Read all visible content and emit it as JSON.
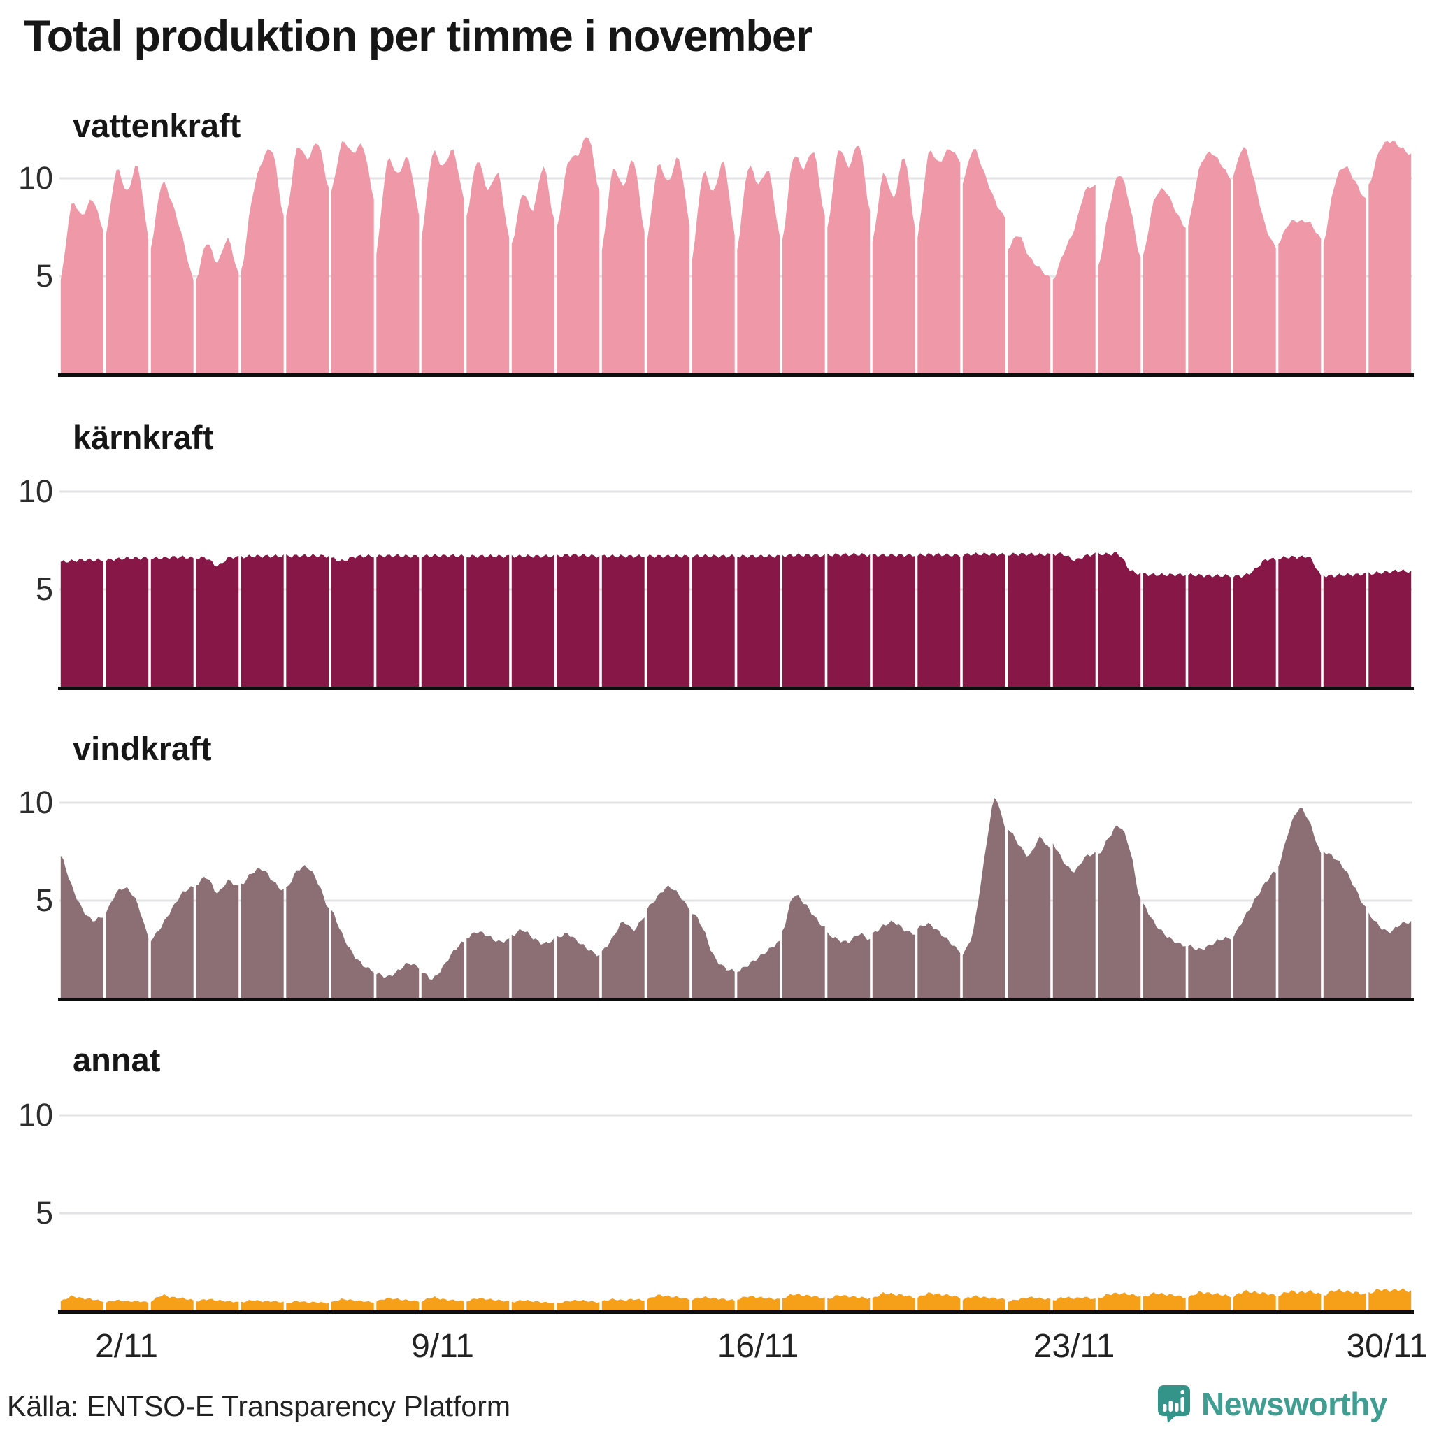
{
  "title": "Total produktion per timme i november",
  "y_axis": {
    "tick_labels": [
      "10",
      "5"
    ]
  },
  "x_axis": {
    "labels": [
      "2/11",
      "9/11",
      "16/11",
      "23/11",
      "30/11"
    ],
    "label_days": [
      2,
      9,
      16,
      23,
      30
    ]
  },
  "footer": {
    "source": "Källa: ENTSO-E Transparency Platform",
    "brand": "Newsworthy"
  },
  "colors": {
    "background": "#ffffff",
    "title_text": "#161616",
    "tick_text": "#2d2d2d",
    "gridline": "#e3e3e5",
    "axis_line": "#0d0d0d",
    "brand_teal": "#3f9e91",
    "hydro_pink": "#ef98a8",
    "nuclear_maroon": "#871747",
    "wind_mauve": "#8c6f75",
    "other_orange": "#f6a01a"
  },
  "chart_data": {
    "type": "area",
    "note": "small multiples; one panel per energy source; hourly production in November, 30 daily segments; 5 keyframes per day (00h,06h,12h,18h,24h), unit GW",
    "yticks": [
      5,
      10
    ],
    "ylim": [
      0,
      13
    ],
    "x_tick_labels": [
      "2/11",
      "9/11",
      "16/11",
      "23/11",
      "30/11"
    ],
    "panels": [
      {
        "label": "vattenkraft",
        "color": "#ef98a8",
        "days": [
          [
            4.8,
            8.6,
            8.1,
            8.9,
            7.4
          ],
          [
            7.1,
            10.4,
            9.3,
            10.6,
            7.0
          ],
          [
            6.5,
            9.7,
            8.7,
            6.9,
            4.8
          ],
          [
            4.8,
            6.7,
            5.7,
            6.9,
            5.1
          ],
          [
            5.2,
            8.9,
            10.9,
            11.3,
            8.0
          ],
          [
            8.0,
            11.5,
            11.0,
            11.8,
            9.5
          ],
          [
            9.3,
            11.8,
            11.3,
            11.6,
            9.0
          ],
          [
            6.2,
            10.8,
            10.2,
            11.0,
            8.2
          ],
          [
            7.0,
            11.2,
            10.6,
            11.4,
            8.9
          ],
          [
            8.1,
            10.9,
            9.4,
            10.2,
            6.9
          ],
          [
            6.6,
            9.2,
            8.4,
            10.6,
            7.8
          ],
          [
            7.4,
            10.7,
            11.2,
            12.1,
            9.3
          ],
          [
            6.3,
            10.4,
            9.6,
            10.9,
            7.3
          ],
          [
            6.8,
            10.6,
            9.8,
            11.0,
            7.7
          ],
          [
            5.9,
            10.2,
            9.3,
            10.8,
            7.1
          ],
          [
            6.4,
            10.5,
            9.7,
            10.3,
            7.0
          ],
          [
            6.8,
            11.0,
            10.5,
            11.3,
            8.0
          ],
          [
            7.4,
            11.4,
            10.6,
            11.7,
            8.3
          ],
          [
            6.7,
            10.2,
            9.0,
            11.1,
            7.5
          ],
          [
            7.0,
            11.2,
            10.8,
            11.5,
            10.9
          ],
          [
            9.8,
            11.5,
            10.3,
            8.9,
            8.0
          ],
          [
            6.4,
            7.1,
            6.0,
            5.4,
            4.9
          ],
          [
            4.8,
            6.2,
            7.4,
            9.3,
            9.6
          ],
          [
            5.4,
            8.3,
            10.2,
            8.6,
            5.9
          ],
          [
            6.0,
            8.8,
            9.4,
            8.4,
            7.5
          ],
          [
            7.6,
            10.4,
            11.3,
            10.8,
            10.0
          ],
          [
            10.2,
            11.6,
            9.8,
            7.6,
            6.5
          ],
          [
            6.7,
            7.7,
            7.8,
            7.7,
            6.9
          ],
          [
            6.7,
            9.6,
            10.6,
            9.8,
            8.9
          ],
          [
            9.6,
            11.4,
            11.9,
            11.6,
            11.2
          ]
        ]
      },
      {
        "label": "kärnkraft",
        "color": "#871747",
        "days": [
          [
            6.4,
            6.45,
            6.5,
            6.5,
            6.5
          ],
          [
            6.5,
            6.55,
            6.6,
            6.6,
            6.6
          ],
          [
            6.6,
            6.6,
            6.65,
            6.65,
            6.6
          ],
          [
            6.6,
            6.6,
            6.2,
            6.6,
            6.65
          ],
          [
            6.65,
            6.7,
            6.7,
            6.7,
            6.7
          ],
          [
            6.7,
            6.72,
            6.72,
            6.72,
            6.7
          ],
          [
            6.6,
            6.45,
            6.65,
            6.7,
            6.7
          ],
          [
            6.7,
            6.72,
            6.72,
            6.7,
            6.7
          ],
          [
            6.7,
            6.72,
            6.72,
            6.72,
            6.7
          ],
          [
            6.7,
            6.7,
            6.7,
            6.7,
            6.7
          ],
          [
            6.7,
            6.7,
            6.7,
            6.7,
            6.7
          ],
          [
            6.7,
            6.75,
            6.75,
            6.72,
            6.7
          ],
          [
            6.7,
            6.7,
            6.7,
            6.7,
            6.7
          ],
          [
            6.7,
            6.7,
            6.7,
            6.7,
            6.7
          ],
          [
            6.7,
            6.72,
            6.7,
            6.7,
            6.7
          ],
          [
            6.7,
            6.7,
            6.7,
            6.7,
            6.7
          ],
          [
            6.72,
            6.75,
            6.75,
            6.75,
            6.72
          ],
          [
            6.75,
            6.78,
            6.78,
            6.78,
            6.75
          ],
          [
            6.75,
            6.75,
            6.75,
            6.75,
            6.75
          ],
          [
            6.75,
            6.78,
            6.78,
            6.75,
            6.75
          ],
          [
            6.78,
            6.8,
            6.8,
            6.8,
            6.78
          ],
          [
            6.78,
            6.8,
            6.8,
            6.78,
            6.78
          ],
          [
            6.8,
            6.8,
            6.5,
            6.7,
            6.8
          ],
          [
            6.8,
            6.8,
            6.78,
            6.0,
            5.8
          ],
          [
            5.78,
            5.75,
            5.75,
            5.75,
            5.75
          ],
          [
            5.75,
            5.72,
            5.7,
            5.7,
            5.7
          ],
          [
            5.7,
            5.7,
            6.0,
            6.5,
            6.55
          ],
          [
            6.6,
            6.65,
            6.65,
            6.6,
            5.7
          ],
          [
            5.7,
            5.7,
            5.75,
            5.75,
            5.8
          ],
          [
            5.8,
            5.85,
            5.9,
            5.95,
            5.9
          ]
        ]
      },
      {
        "label": "vindkraft",
        "color": "#8c6f75",
        "days": [
          [
            7.3,
            5.8,
            4.6,
            4.0,
            4.2
          ],
          [
            4.4,
            5.4,
            5.6,
            4.8,
            3.2
          ],
          [
            3.0,
            3.7,
            4.6,
            5.4,
            5.7
          ],
          [
            5.8,
            6.2,
            5.4,
            6.0,
            5.7
          ],
          [
            5.8,
            6.4,
            6.6,
            6.0,
            5.5
          ],
          [
            5.6,
            6.5,
            6.7,
            5.9,
            4.6
          ],
          [
            4.5,
            3.3,
            2.3,
            1.7,
            1.4
          ],
          [
            1.3,
            1.1,
            1.4,
            1.8,
            1.6
          ],
          [
            1.4,
            1.0,
            1.6,
            2.4,
            2.9
          ],
          [
            3.1,
            3.4,
            3.2,
            2.9,
            3.0
          ],
          [
            3.2,
            3.5,
            3.1,
            2.8,
            3.0
          ],
          [
            3.1,
            3.3,
            2.9,
            2.5,
            2.2
          ],
          [
            2.4,
            3.1,
            3.9,
            3.5,
            4.2
          ],
          [
            4.6,
            5.2,
            5.7,
            5.3,
            4.6
          ],
          [
            4.4,
            3.6,
            2.2,
            1.6,
            1.4
          ],
          [
            1.4,
            1.7,
            2.1,
            2.5,
            2.9
          ],
          [
            3.4,
            5.2,
            4.9,
            4.2,
            3.6
          ],
          [
            3.3,
            3.0,
            2.9,
            3.3,
            3.0
          ],
          [
            3.3,
            3.7,
            3.9,
            3.5,
            3.3
          ],
          [
            3.6,
            3.8,
            3.4,
            2.9,
            2.4
          ],
          [
            2.3,
            3.5,
            7.0,
            10.2,
            8.7
          ],
          [
            8.7,
            7.9,
            7.3,
            8.2,
            7.6
          ],
          [
            7.9,
            7.0,
            6.5,
            7.2,
            7.4
          ],
          [
            7.3,
            8.2,
            8.8,
            7.6,
            5.0
          ],
          [
            4.8,
            3.9,
            3.3,
            2.9,
            2.7
          ],
          [
            2.7,
            2.5,
            2.7,
            3.0,
            3.1
          ],
          [
            3.2,
            4.1,
            5.0,
            5.9,
            6.5
          ],
          [
            6.8,
            8.6,
            9.7,
            8.9,
            7.4
          ],
          [
            7.5,
            7.2,
            6.6,
            5.6,
            4.6
          ],
          [
            4.3,
            3.7,
            3.4,
            3.8,
            3.9
          ]
        ]
      },
      {
        "label": "annat",
        "color": "#f6a01a",
        "days": [
          [
            0.5,
            0.75,
            0.65,
            0.6,
            0.5
          ],
          [
            0.45,
            0.55,
            0.5,
            0.5,
            0.45
          ],
          [
            0.5,
            0.8,
            0.7,
            0.65,
            0.55
          ],
          [
            0.5,
            0.6,
            0.55,
            0.5,
            0.45
          ],
          [
            0.45,
            0.55,
            0.5,
            0.5,
            0.45
          ],
          [
            0.4,
            0.5,
            0.45,
            0.45,
            0.4
          ],
          [
            0.45,
            0.6,
            0.55,
            0.5,
            0.45
          ],
          [
            0.5,
            0.65,
            0.6,
            0.55,
            0.5
          ],
          [
            0.5,
            0.7,
            0.6,
            0.55,
            0.5
          ],
          [
            0.5,
            0.65,
            0.6,
            0.55,
            0.5
          ],
          [
            0.45,
            0.55,
            0.5,
            0.45,
            0.4
          ],
          [
            0.4,
            0.5,
            0.55,
            0.5,
            0.45
          ],
          [
            0.5,
            0.6,
            0.55,
            0.6,
            0.55
          ],
          [
            0.6,
            0.8,
            0.75,
            0.7,
            0.6
          ],
          [
            0.6,
            0.7,
            0.65,
            0.6,
            0.55
          ],
          [
            0.6,
            0.75,
            0.7,
            0.65,
            0.6
          ],
          [
            0.65,
            0.85,
            0.8,
            0.75,
            0.65
          ],
          [
            0.6,
            0.8,
            0.75,
            0.7,
            0.65
          ],
          [
            0.65,
            0.9,
            0.85,
            0.8,
            0.7
          ],
          [
            0.7,
            0.9,
            0.85,
            0.8,
            0.7
          ],
          [
            0.6,
            0.75,
            0.7,
            0.65,
            0.6
          ],
          [
            0.5,
            0.6,
            0.7,
            0.65,
            0.6
          ],
          [
            0.55,
            0.7,
            0.65,
            0.7,
            0.6
          ],
          [
            0.65,
            0.85,
            0.9,
            0.85,
            0.75
          ],
          [
            0.7,
            0.9,
            0.85,
            0.8,
            0.7
          ],
          [
            0.7,
            0.95,
            0.9,
            0.85,
            0.75
          ],
          [
            0.75,
            1.0,
            0.95,
            0.9,
            0.8
          ],
          [
            0.8,
            1.0,
            0.95,
            1.0,
            0.85
          ],
          [
            0.8,
            1.05,
            1.0,
            0.95,
            0.85
          ],
          [
            0.9,
            1.1,
            1.05,
            1.1,
            1.0
          ]
        ]
      }
    ]
  }
}
